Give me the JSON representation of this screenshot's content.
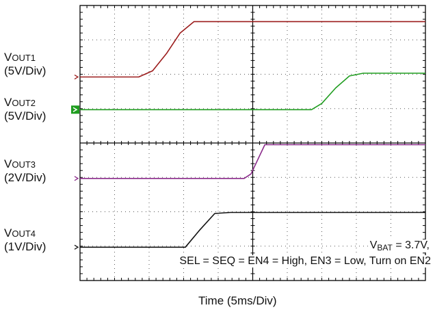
{
  "chart_data": {
    "type": "line",
    "title": "",
    "xlabel": "Time  (5ms/Div)",
    "ylabel": "",
    "grid": true,
    "divisions": {
      "x": 10,
      "y": 8
    },
    "xlim": [
      0,
      10
    ],
    "ylim": [
      0,
      8
    ],
    "channel_labels": [
      {
        "prefix": "V",
        "sub": "OUT1",
        "scale": "(5V/Div)"
      },
      {
        "prefix": "V",
        "sub": "OUT2",
        "scale": "(5V/Div)"
      },
      {
        "prefix": "V",
        "sub": "OUT3",
        "scale": "(2V/Div)"
      },
      {
        "prefix": "V",
        "sub": "OUT4",
        "scale": "(1V/Div)"
      }
    ],
    "series": [
      {
        "color": "#9b1b1b",
        "x": [
          0,
          1.7,
          2.1,
          2.5,
          2.9,
          3.3,
          10
        ],
        "y": [
          5.92,
          5.92,
          6.1,
          6.6,
          7.2,
          7.53,
          7.53
        ]
      },
      {
        "color": "#1f9d1f",
        "x": [
          0,
          6.7,
          7.0,
          7.4,
          7.8,
          8.2,
          10
        ],
        "y": [
          4.97,
          4.97,
          5.15,
          5.6,
          5.95,
          6.03,
          6.03
        ]
      },
      {
        "color": "#8a2a8a",
        "x": [
          0,
          4.75,
          4.95,
          5.35,
          10
        ],
        "y": [
          2.97,
          2.97,
          3.1,
          3.95,
          3.95
        ]
      },
      {
        "color": "#111111",
        "x": [
          0,
          3.05,
          3.45,
          3.9,
          4.35,
          10
        ],
        "y": [
          0.97,
          0.97,
          1.45,
          1.95,
          1.98,
          1.98
        ]
      }
    ],
    "annotations": [
      {
        "prefix": "V",
        "sub": "BAT",
        "text": " = 3.7V,"
      },
      {
        "text": "SEL = SEQ = EN4 = High, EN3 = Low, Turn on EN2"
      }
    ]
  }
}
